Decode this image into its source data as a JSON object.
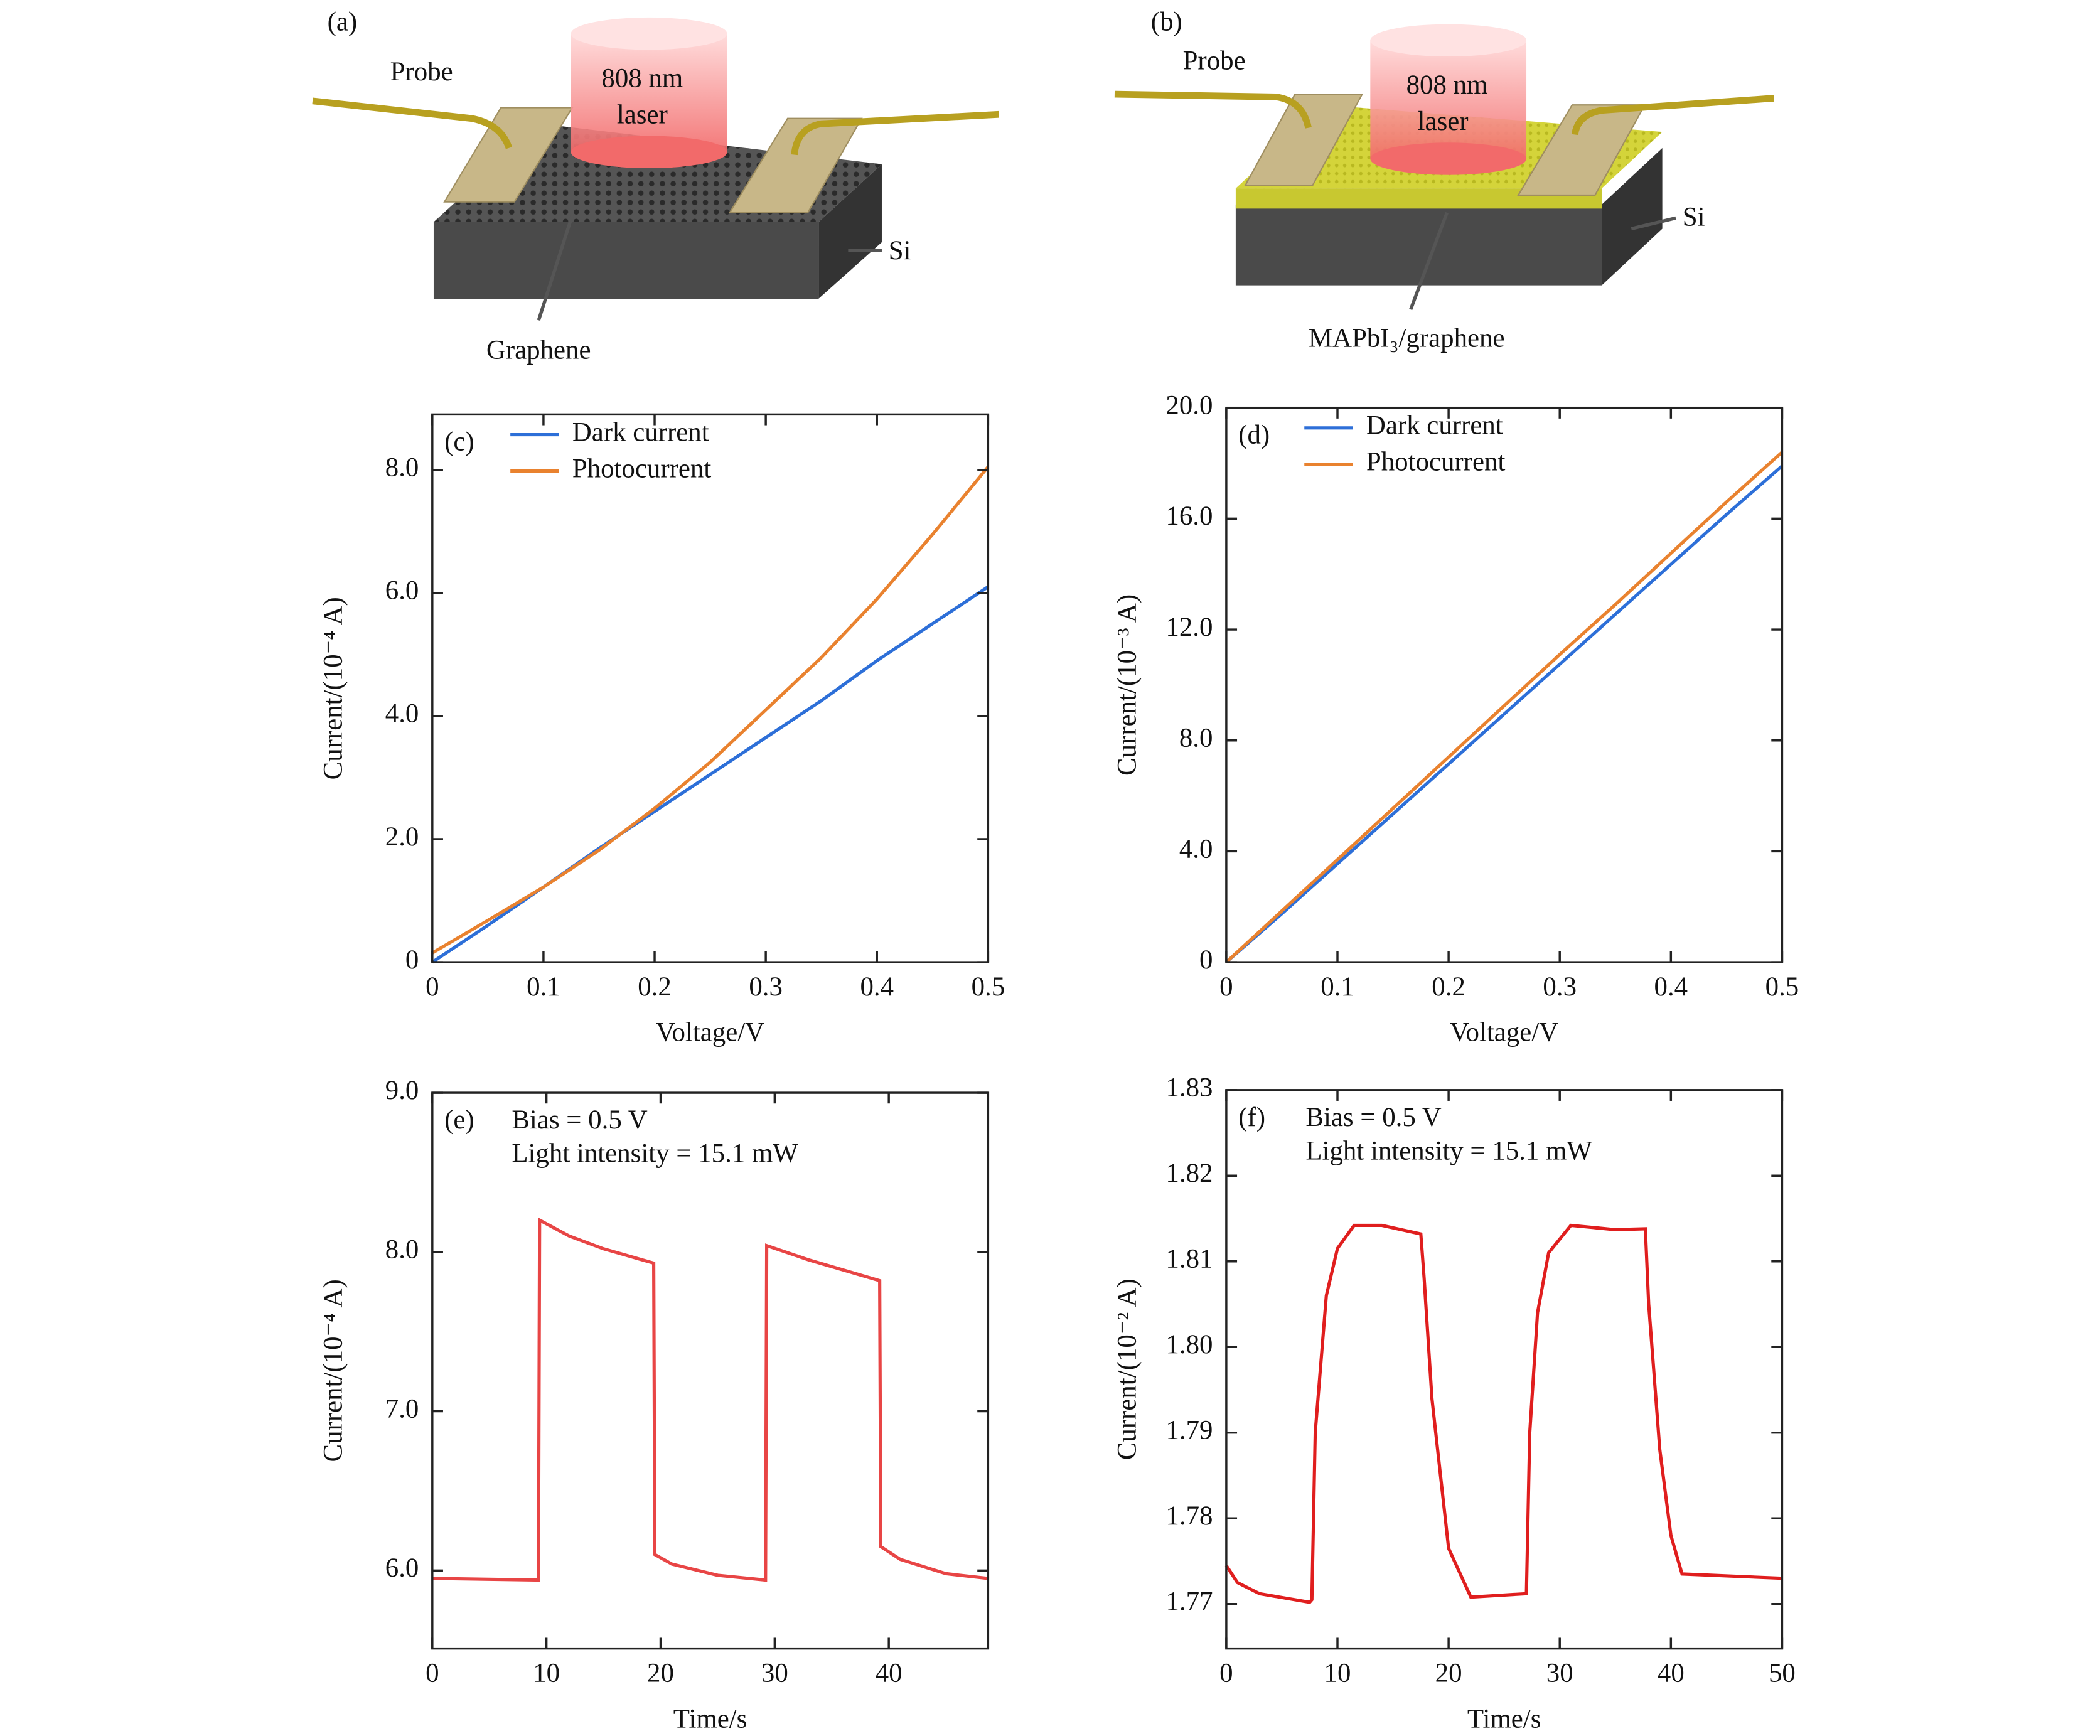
{
  "diagrams": [
    {
      "panel_label": "(a)",
      "probe": "Probe",
      "laser": [
        "808 nm",
        "laser"
      ],
      "substrate": "Si",
      "layer": "Graphene"
    },
    {
      "panel_label": "(b)",
      "probe": "Probe",
      "laser": [
        "808 nm",
        "laser"
      ],
      "substrate": "Si",
      "layer": "MAPbI₃/graphene"
    }
  ],
  "chart_data": [
    {
      "type": "line",
      "panel_label": "(c)",
      "xlabel": "Voltage/V",
      "ylabel": "Current/(10⁻⁴ A)",
      "legend": "upper left",
      "x": [
        0,
        0.05,
        0.1,
        0.15,
        0.2,
        0.25,
        0.3,
        0.35,
        0.4,
        0.45,
        0.5
      ],
      "series": [
        {
          "name": "Dark current",
          "color": "#2d6fd8",
          "values": [
            0,
            0.6,
            1.22,
            1.85,
            2.45,
            3.05,
            3.65,
            4.25,
            4.9,
            5.5,
            6.1
          ]
        },
        {
          "name": "Photocurrent",
          "color": "#e9822f",
          "values": [
            0.15,
            0.68,
            1.22,
            1.82,
            2.5,
            3.25,
            4.1,
            4.95,
            5.9,
            6.95,
            8.05
          ]
        }
      ],
      "xlim": [
        0,
        0.5
      ],
      "xticks": [
        0,
        0.1,
        0.2,
        0.3,
        0.4,
        0.5
      ],
      "ylim": [
        0,
        8.9
      ],
      "yticks": [
        0,
        {
          "value": 2,
          "label": "2.0"
        },
        {
          "value": 4,
          "label": "4.0"
        },
        {
          "value": 6,
          "label": "6.0"
        },
        {
          "value": 8,
          "label": "8.0"
        }
      ]
    },
    {
      "type": "line",
      "panel_label": "(d)",
      "xlabel": "Voltage/V",
      "ylabel": "Current/(10⁻³ A)",
      "legend": "upper left",
      "x": [
        0,
        0.05,
        0.1,
        0.15,
        0.2,
        0.25,
        0.3,
        0.35,
        0.4,
        0.45,
        0.5
      ],
      "series": [
        {
          "name": "Dark current",
          "color": "#2d6fd8",
          "values": [
            0,
            1.75,
            3.55,
            5.35,
            7.15,
            8.95,
            10.75,
            12.55,
            14.35,
            16.15,
            17.9
          ]
        },
        {
          "name": "Photocurrent",
          "color": "#e9822f",
          "values": [
            0,
            1.85,
            3.7,
            5.55,
            7.4,
            9.25,
            11.1,
            12.9,
            14.75,
            16.6,
            18.4
          ]
        }
      ],
      "xlim": [
        0,
        0.5
      ],
      "xticks": [
        0,
        0.1,
        0.2,
        0.3,
        0.4,
        0.5
      ],
      "ylim": [
        0,
        20
      ],
      "yticks": [
        0,
        {
          "value": 4,
          "label": "4.0"
        },
        {
          "value": 8,
          "label": "8.0"
        },
        {
          "value": 12,
          "label": "12.0"
        },
        {
          "value": 16,
          "label": "16.0"
        },
        {
          "value": 20,
          "label": "20.0"
        }
      ]
    },
    {
      "type": "line",
      "panel_label": "(e)",
      "xlabel": "Time/s",
      "ylabel": "Current/(10⁻⁴ A)",
      "annotations": [
        "Bias = 0.5 V",
        "Light intensity = 15.1 mW"
      ],
      "x": [
        0,
        9.3,
        9.4,
        12,
        15,
        19.4,
        19.5,
        21,
        25,
        29.2,
        29.3,
        33,
        39.2,
        39.3,
        41,
        45,
        48.7
      ],
      "series": [
        {
          "color": "#e84545",
          "values": [
            5.95,
            5.94,
            8.2,
            8.1,
            8.02,
            7.93,
            6.1,
            6.04,
            5.97,
            5.94,
            8.04,
            7.95,
            7.82,
            6.15,
            6.07,
            5.98,
            5.95
          ]
        }
      ],
      "xlim": [
        0,
        48.7
      ],
      "xticks": [
        0,
        10,
        20,
        30,
        40
      ],
      "ylim": [
        5.51,
        9
      ],
      "yticks": [
        {
          "value": 6,
          "label": "6.0"
        },
        {
          "value": 7,
          "label": "7.0"
        },
        {
          "value": 8,
          "label": "8.0"
        },
        {
          "value": 9,
          "label": "9.0"
        }
      ]
    },
    {
      "type": "line",
      "panel_label": "(f)",
      "xlabel": "Time/s",
      "ylabel": "Current/(10⁻² A)",
      "annotations": [
        "Bias = 0.5 V",
        "Light intensity = 15.1 mW"
      ],
      "x": [
        0,
        1,
        3,
        7.5,
        7.7,
        8,
        9,
        10,
        11.5,
        14,
        17.5,
        17.8,
        18.5,
        20,
        22,
        27,
        27.3,
        28,
        29,
        31,
        35,
        37.7,
        38,
        39,
        40,
        41,
        50
      ],
      "series": [
        {
          "color": "#e01e1e",
          "values": [
            1.7745,
            1.7725,
            1.7712,
            1.7702,
            1.7705,
            1.79,
            1.806,
            1.8115,
            1.8142,
            1.8142,
            1.8132,
            1.808,
            1.794,
            1.7765,
            1.7708,
            1.7712,
            1.79,
            1.804,
            1.811,
            1.8142,
            1.8137,
            1.8138,
            1.805,
            1.788,
            1.778,
            1.7735,
            1.773
          ]
        }
      ],
      "xlim": [
        0,
        50
      ],
      "xticks": [
        0,
        10,
        20,
        30,
        40,
        50
      ],
      "ylim": [
        1.7648,
        1.83
      ],
      "yticks": [
        1.77,
        1.78,
        1.79,
        {
          "value": 1.8,
          "label": "1.80"
        },
        1.81,
        1.82,
        1.83
      ]
    }
  ]
}
